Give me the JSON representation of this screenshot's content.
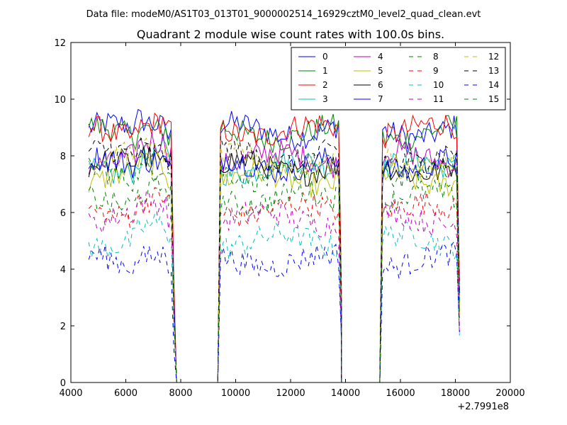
{
  "chart_data": {
    "type": "line",
    "suptitle": "Data file: modeM0/AS1T03_013T01_9000002514_16929cztM0_level2_quad_clean.evt",
    "title": "Quadrant 2 module wise count rates with 100.0s bins.",
    "xlabel": "",
    "ylabel": "",
    "x_offset_label": "+2.7991e8",
    "xlim": [
      4000,
      20000
    ],
    "ylim": [
      0,
      12
    ],
    "xticks": [
      4000,
      6000,
      8000,
      10000,
      12000,
      14000,
      16000,
      18000,
      20000
    ],
    "yticks": [
      0,
      2,
      4,
      6,
      8,
      10,
      12
    ],
    "grid": false,
    "legend_position": "top-right",
    "legend_columns": 4,
    "segments": [
      [
        4650,
        7650
      ],
      [
        9450,
        13750
      ],
      [
        15350,
        18050
      ]
    ],
    "gap_ranges": [
      [
        7850,
        9350
      ],
      [
        13850,
        15250
      ]
    ],
    "series": [
      {
        "name": "0",
        "color": "#0000ff",
        "style": "solid",
        "level": 8.9
      },
      {
        "name": "1",
        "color": "#008000",
        "style": "solid",
        "level": 8.8
      },
      {
        "name": "2",
        "color": "#ff0000",
        "style": "solid",
        "level": 8.9
      },
      {
        "name": "3",
        "color": "#00bfbf",
        "style": "solid",
        "level": 7.6
      },
      {
        "name": "4",
        "color": "#bf00bf",
        "style": "solid",
        "level": 7.9
      },
      {
        "name": "5",
        "color": "#bfbf00",
        "style": "solid",
        "level": 7.2
      },
      {
        "name": "6",
        "color": "#000000",
        "style": "solid",
        "level": 7.6
      },
      {
        "name": "7",
        "color": "#0000ff",
        "style": "solid",
        "level": 7.7
      },
      {
        "name": "8",
        "color": "#008000",
        "style": "dashed",
        "level": 7.4
      },
      {
        "name": "9",
        "color": "#ff0000",
        "style": "dashed",
        "level": 6.1
      },
      {
        "name": "10",
        "color": "#00bfbf",
        "style": "dashed",
        "level": 5.0
      },
      {
        "name": "11",
        "color": "#bf00bf",
        "style": "dashed",
        "level": 5.8
      },
      {
        "name": "12",
        "color": "#bfbf00",
        "style": "dashed",
        "level": 7.8
      },
      {
        "name": "13",
        "color": "#000000",
        "style": "dashed",
        "level": 8.0
      },
      {
        "name": "14",
        "color": "#0000ff",
        "style": "dashed",
        "level": 4.3
      },
      {
        "name": "15",
        "color": "#008000",
        "style": "dashed",
        "level": 6.5
      }
    ]
  }
}
